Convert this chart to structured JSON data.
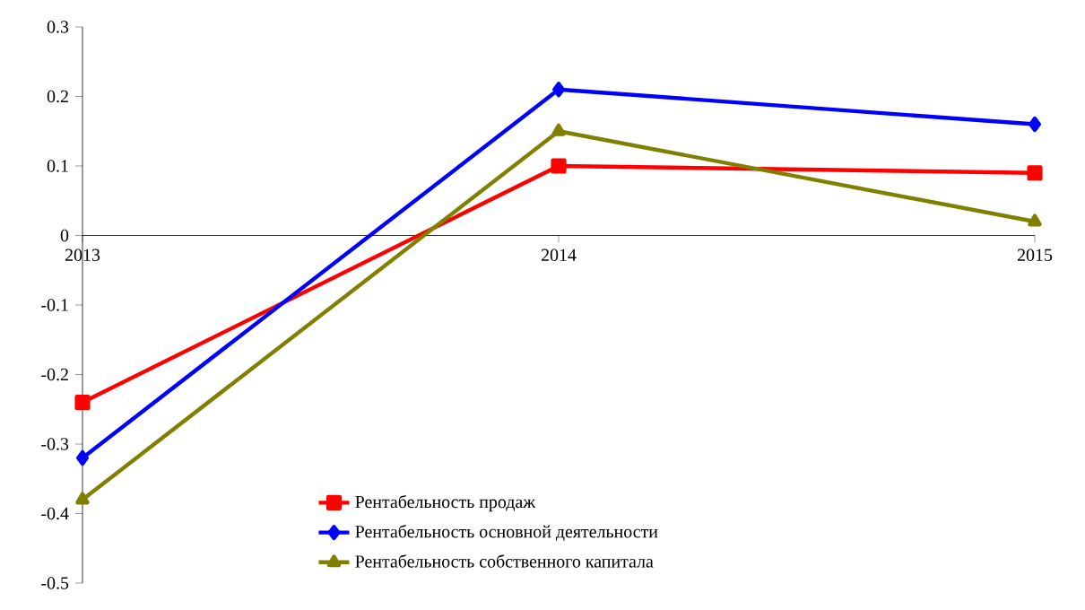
{
  "chart_data": {
    "type": "line",
    "categories": [
      "2013",
      "2014",
      "2015"
    ],
    "series": [
      {
        "name": "Рентабельность продаж",
        "color": "#ff0000",
        "marker": "square",
        "values": [
          -0.24,
          0.1,
          0.09
        ]
      },
      {
        "name": "Рентабельность основной деятельности",
        "color": "#0000ff",
        "marker": "diamond",
        "values": [
          -0.32,
          0.21,
          0.16
        ]
      },
      {
        "name": "Рентабельность собственного капитала",
        "color": "#808000",
        "marker": "triangle",
        "values": [
          -0.38,
          0.15,
          0.02
        ]
      }
    ],
    "ylim": [
      -0.5,
      0.3
    ],
    "yticks": [
      -0.5,
      -0.4,
      -0.3,
      -0.2,
      -0.1,
      0,
      0.1,
      0.2,
      0.3
    ],
    "grid": false,
    "legend": "bottom",
    "line_style": "solid"
  }
}
